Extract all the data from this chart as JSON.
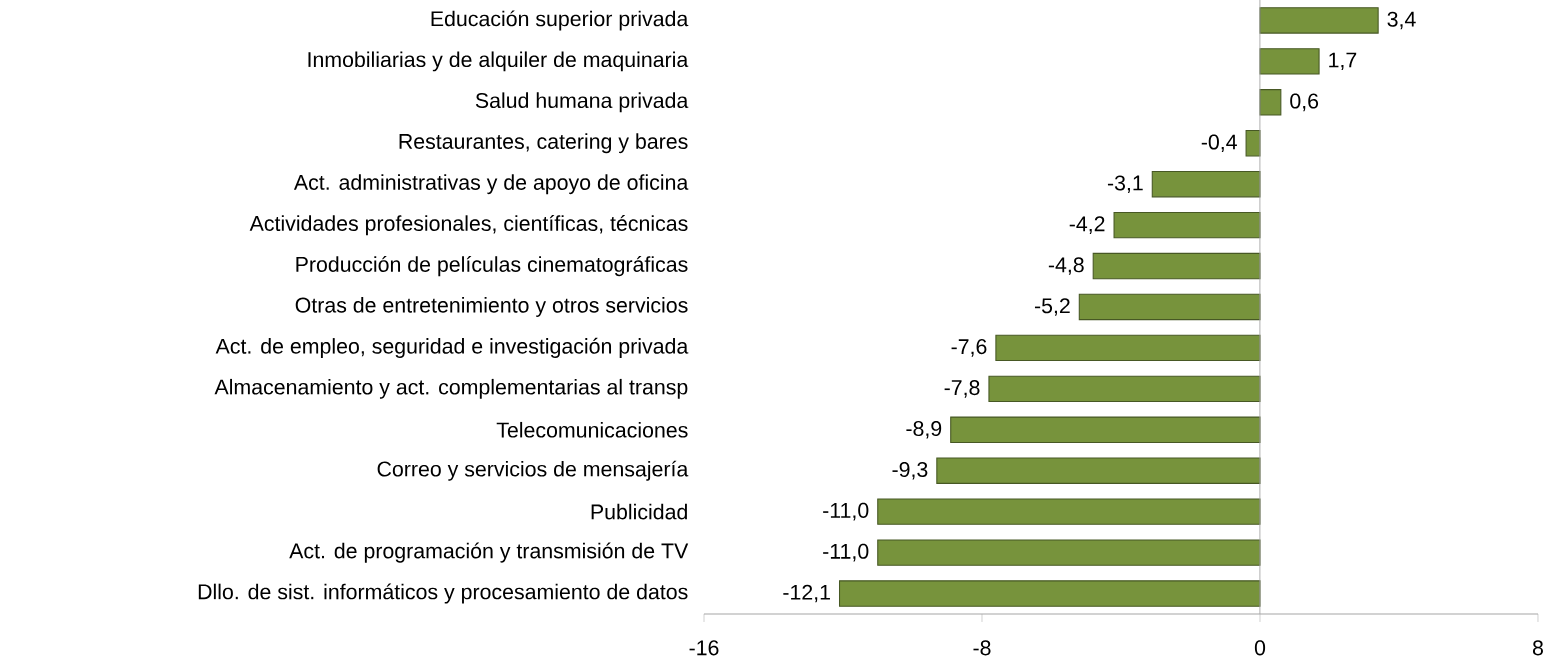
{
  "chart_data": {
    "type": "bar",
    "orientation": "horizontal",
    "categories": [
      "Educación superior privada",
      "Inmobiliarias y de alquiler de maquinaria",
      "Salud humana privada",
      "Restaurantes, catering y bares",
      "Act. administrativas y de apoyo de oficina",
      "Actividades profesionales, científicas, técnicas",
      "Producción de películas cinematográficas",
      "Otras de entretenimiento y otros servicios",
      "Act. de empleo, seguridad e investigación privada",
      "Almacenamiento y act. complementarias al transp",
      "Telecomunicaciones",
      "Correo y servicios de mensajería",
      "Publicidad",
      "Act. de programación y transmisión de TV",
      "Dllo. de sist. informáticos y procesamiento de datos"
    ],
    "values": [
      3.4,
      1.7,
      0.6,
      -0.4,
      -3.1,
      -4.2,
      -4.8,
      -5.2,
      -7.6,
      -7.8,
      -8.9,
      -9.3,
      -11.0,
      -11.0,
      -12.1
    ],
    "value_labels": [
      "3,4",
      "1,7",
      "0,6",
      "-0,4",
      "-3,1",
      "-4,2",
      "-4,8",
      "-5,2",
      "-7,6",
      "-7,8",
      "-8,9",
      "-9,3",
      "-11,0",
      "-11,0",
      "-12,1"
    ],
    "color": "#77933c",
    "xlim": [
      -16,
      8
    ],
    "xticks": [
      -16,
      -8,
      0,
      8
    ]
  }
}
